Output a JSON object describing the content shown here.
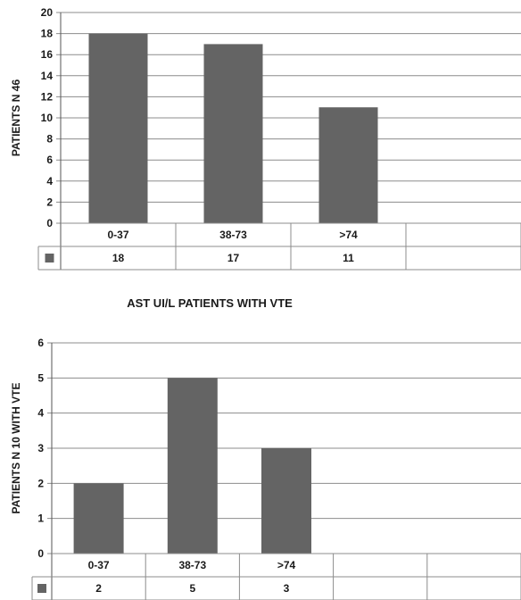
{
  "colors": {
    "bar": "#646464",
    "grid": "#8c8c8c",
    "axis": "#555555",
    "legend_marker": "#646464"
  },
  "chart_data": [
    {
      "type": "bar",
      "title": "",
      "xlabel": "",
      "ylabel": "PATIENTS N 46",
      "ylim": [
        0,
        20
      ],
      "yticks": [
        0,
        2,
        4,
        6,
        8,
        10,
        12,
        14,
        16,
        18,
        20
      ],
      "grid": true,
      "categories": [
        "0-37",
        "38-73",
        ">74",
        ""
      ],
      "series": [
        {
          "values": [
            18,
            17,
            11,
            null
          ]
        }
      ],
      "data_table": true
    },
    {
      "type": "bar",
      "title": "AST UI/L PATIENTS WITH VTE",
      "xlabel": "",
      "ylabel": "PATIENTS N 10 WITH VTE",
      "ylim": [
        0,
        6
      ],
      "yticks": [
        0,
        1,
        2,
        3,
        4,
        5,
        6
      ],
      "grid": true,
      "categories": [
        "0-37",
        "38-73",
        ">74",
        "",
        ""
      ],
      "series": [
        {
          "values": [
            2,
            5,
            3,
            null,
            null
          ]
        }
      ],
      "data_table": true
    }
  ]
}
